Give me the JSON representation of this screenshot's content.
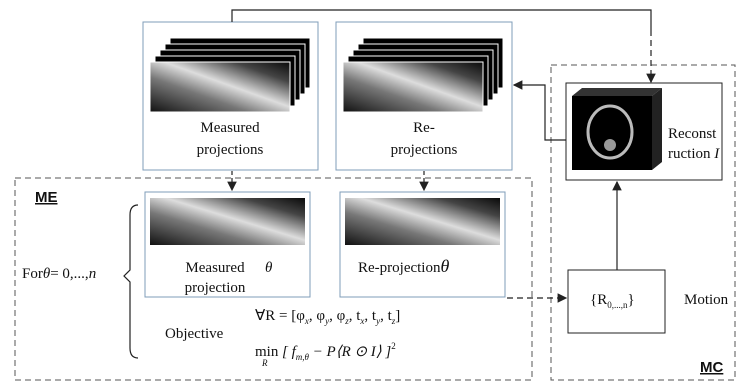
{
  "top": {
    "measured": {
      "line1": "Measured",
      "line2": "projections"
    },
    "reprojections": {
      "line1": "Re-",
      "line2": "projections"
    },
    "reconstruction": {
      "line1": "Reconst",
      "line2": "ruction",
      "symbol": "I"
    }
  },
  "me": {
    "label": "ME",
    "loop": {
      "prefix": "For",
      "theta": "θ",
      "range": "= 0,...,",
      "n": "n"
    },
    "measured_theta": {
      "line1": "Measured",
      "theta": "θ",
      "line2": "projection"
    },
    "reprojection_theta": {
      "label": "Re-projection",
      "theta": "θ"
    },
    "objective": {
      "label": "Objective",
      "constraint": [
        "∀R = [φ",
        "x",
        ", φ",
        "y",
        ", φ",
        "z",
        ", t",
        "x",
        ", t",
        "y",
        ", t",
        "z",
        "]"
      ],
      "formula": {
        "min": "min",
        "under": "R",
        "open": "[ f",
        "sub": "m,θ",
        "rest": " − P⟨R ⊙ I⟩ ]",
        "power": "2"
      }
    }
  },
  "mc": {
    "label": "MC",
    "set": {
      "open": "{R",
      "sub": "0,...,n",
      "close": "}"
    },
    "motion": "Motion"
  }
}
